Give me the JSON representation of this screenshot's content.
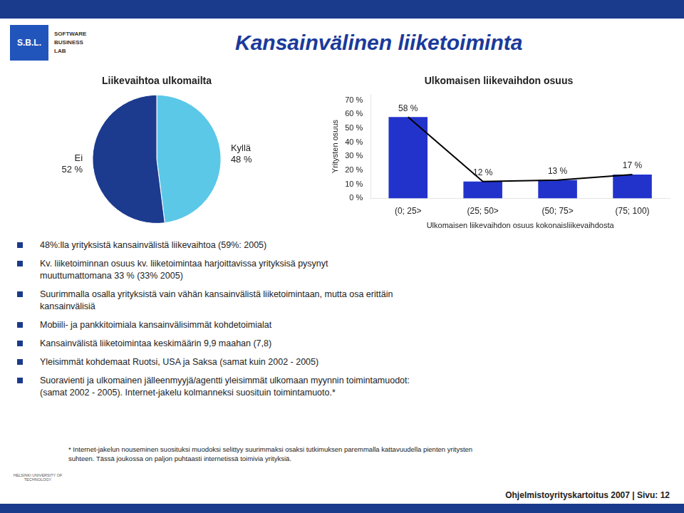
{
  "title": "Kansainvälinen liiketoiminta",
  "annotations": {
    "logo": [
      "S.B.L.",
      "SOFTWARE",
      "BUSINESS",
      "LAB"
    ],
    "bullets": [
      "48%:lla yrityksistä kansainvälistä liikevaihtoa (59%: 2005)",
      "Kv. liiketoiminnan osuus kv. liiketoimintaa harjoittavissa yrityksisä pysynyt\nmuuttumattomana 33 % (33% 2005)",
      "Suurimmalla osalla yrityksistä vain vähän kansainvälistä liiketoimintaan, mutta osa erittäin\nkansainvälisiä",
      "Mobiili- ja pankkitoimiala kansainvälisimmät kohdetoimialat",
      "Kansainvälistä liiketoimintaa keskimäärin 9,9 maahan (7,8)",
      "Yleisimmät kohdemaat Ruotsi, USA ja Saksa (samat kuin 2002 - 2005)",
      "Suoravienti ja ulkomainen jälleenmyyjä/agentti yleisimmät ulkomaan myynnin toimintamuodot:\n(samat 2002 - 2005). Internet-jakelu kolmanneksi suosituin toimintamuoto.*"
    ],
    "footnote": "* Internet-jakelun nouseminen suosituksi muodoksi selittyy suurimmaksi osaksi tutkimuksen paremmalla kattavuudella pienten yritysten\nsuhteen. Tässä joukossa on paljon puhtaasti internetissä toimivia yrityksiä.",
    "credit": "HELSINKI UNIVERSITY OF TECHNOLOGY",
    "footer": "Ohjelmistoyrityskartoitus 2007 | Sivu: 12"
  },
  "chart_data": [
    {
      "type": "pie",
      "title": "Liikevaihtoa ulkomailta",
      "categories": [
        "Kyllä",
        "Ei"
      ],
      "values": [
        48,
        52
      ],
      "value_labels": [
        "48 %",
        "52 %"
      ],
      "colors": [
        "#5BC8E8",
        "#1C3B8E"
      ],
      "data_labels": true,
      "legend": false
    },
    {
      "type": "bar",
      "title": "Ulkomaisen liikevaihdon osuus",
      "x_label": "Ulkomaisen liikevaihdon osuus kokonaisliikevaihdosta",
      "y_label": "Yritysten osuus",
      "categories": [
        "(0; 25>",
        "(25; 50>",
        "(50; 75>",
        "(75; 100)"
      ],
      "series": [
        {
          "type": "bar",
          "color": "#2233CC",
          "values": [
            58,
            12,
            13,
            17
          ],
          "value_labels": [
            "58 %",
            "12 %",
            "13 %",
            "17 %"
          ]
        },
        {
          "type": "line",
          "color": "#000000",
          "marker": "none",
          "line_style": "solid",
          "values": [
            58,
            12,
            13,
            17
          ]
        }
      ],
      "ylim": [
        0,
        74
      ],
      "yticks": [
        {
          "value": 0,
          "label": "0 %"
        },
        {
          "value": 10,
          "label": "10 %"
        },
        {
          "value": 20,
          "label": "20 %"
        },
        {
          "value": 30,
          "label": "30 %"
        },
        {
          "value": 40,
          "label": "40 %"
        },
        {
          "value": 50,
          "label": "50 %"
        },
        {
          "value": 60,
          "label": "60 %"
        },
        {
          "value": 70,
          "label": "70 %"
        }
      ],
      "grid": false,
      "legend": false,
      "data_labels": true
    }
  ]
}
